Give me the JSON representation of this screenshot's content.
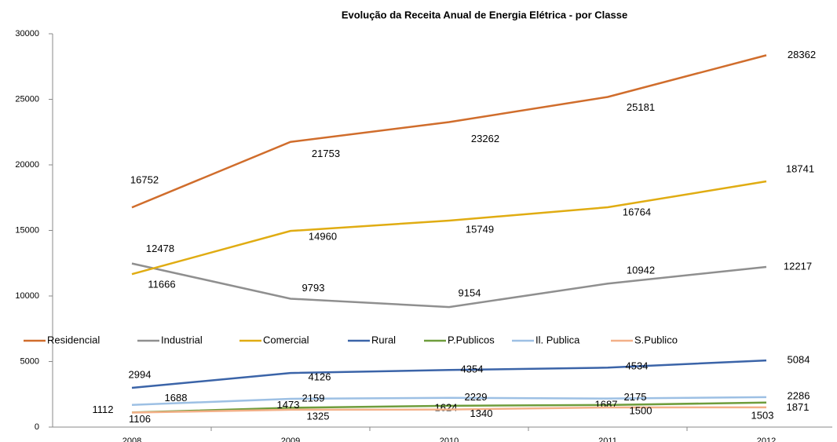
{
  "chart_data": {
    "type": "line",
    "title": "Evolução da Receita Anual de Energia Elétrica - por Classe",
    "categories": [
      "2008",
      "2009",
      "2010",
      "2011",
      "2012"
    ],
    "ylim": [
      0,
      30000
    ],
    "yticks": [
      0,
      5000,
      10000,
      15000,
      20000,
      25000,
      30000
    ],
    "grid": false,
    "legend": "center",
    "series": [
      {
        "name": "Residencial",
        "color": "#D06D2C",
        "values": [
          16752,
          21753,
          23262,
          25181,
          28362
        ]
      },
      {
        "name": "Industrial",
        "color": "#8F8F8F",
        "values": [
          12478,
          9793,
          9154,
          10942,
          12217
        ]
      },
      {
        "name": "Comercial",
        "color": "#E0AC12",
        "values": [
          11666,
          14960,
          15749,
          16764,
          18741
        ]
      },
      {
        "name": "Rural",
        "color": "#3B64A8",
        "values": [
          2994,
          4126,
          4354,
          4534,
          5084
        ]
      },
      {
        "name": "P.Publicos",
        "color": "#6F9D3C",
        "values": [
          1112,
          1473,
          1624,
          1687,
          1871
        ]
      },
      {
        "name": "Il. Publica",
        "color": "#9DC0E4",
        "values": [
          1688,
          2159,
          2229,
          2175,
          2286
        ]
      },
      {
        "name": "S.Publico",
        "color": "#F3B088",
        "values": [
          1106,
          1325,
          1340,
          1500,
          1503
        ]
      }
    ]
  }
}
